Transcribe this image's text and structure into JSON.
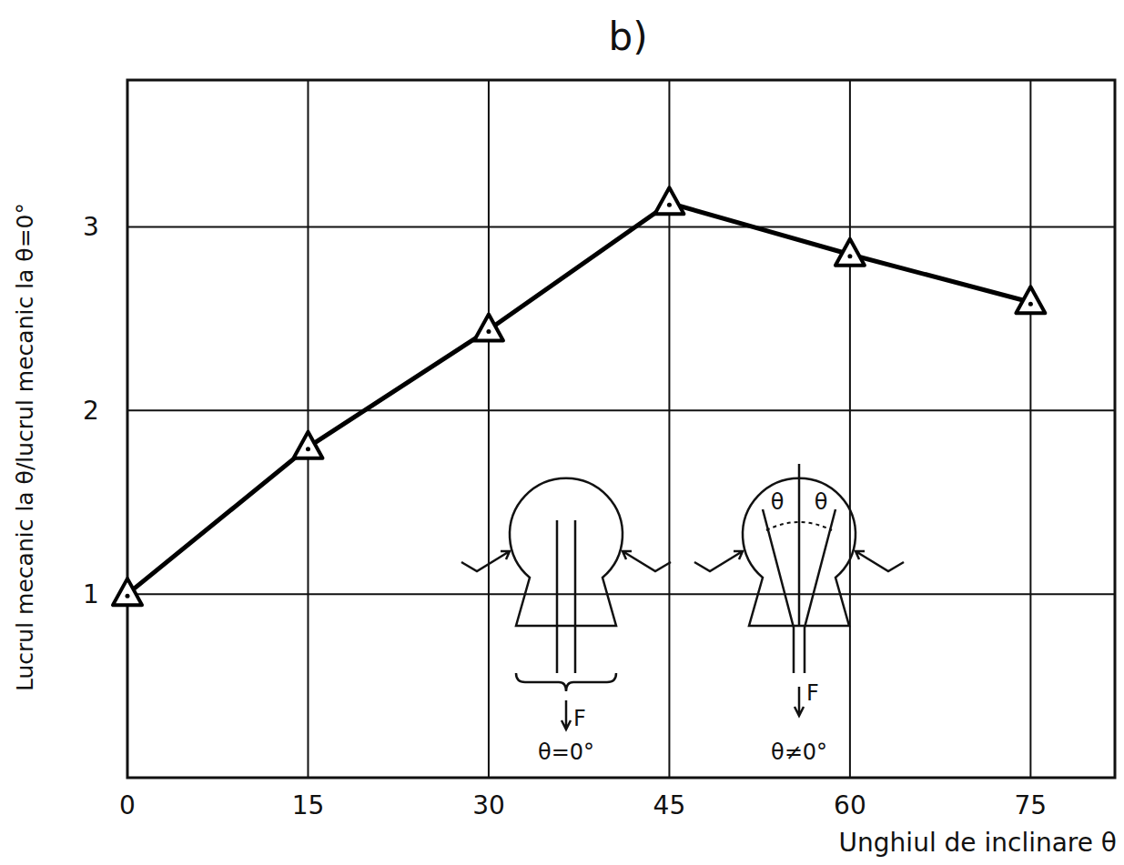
{
  "chart_data": {
    "type": "line",
    "title": "b)",
    "x_label": "Unghiul de inclinare θ",
    "y_label": "Lucrul mecanic la θ/lucrul mecanic la θ=0°",
    "x": [
      0,
      15,
      30,
      45,
      60,
      75
    ],
    "series": [
      {
        "name": null,
        "color": "#000000",
        "marker": "triangle",
        "line_style": "solid",
        "values": [
          1,
          1.8,
          2.44,
          3.13,
          2.85,
          2.59
        ]
      }
    ],
    "xlim": [
      0,
      82
    ],
    "xticks": [
      0,
      15,
      30,
      45,
      60,
      75
    ],
    "ylim": [
      0,
      3.8
    ],
    "yticks": [
      1,
      2,
      3
    ],
    "grid": true,
    "annotations": [
      "F",
      "θ=0°",
      "θ",
      "θ",
      "F",
      "θ≠0°"
    ]
  }
}
